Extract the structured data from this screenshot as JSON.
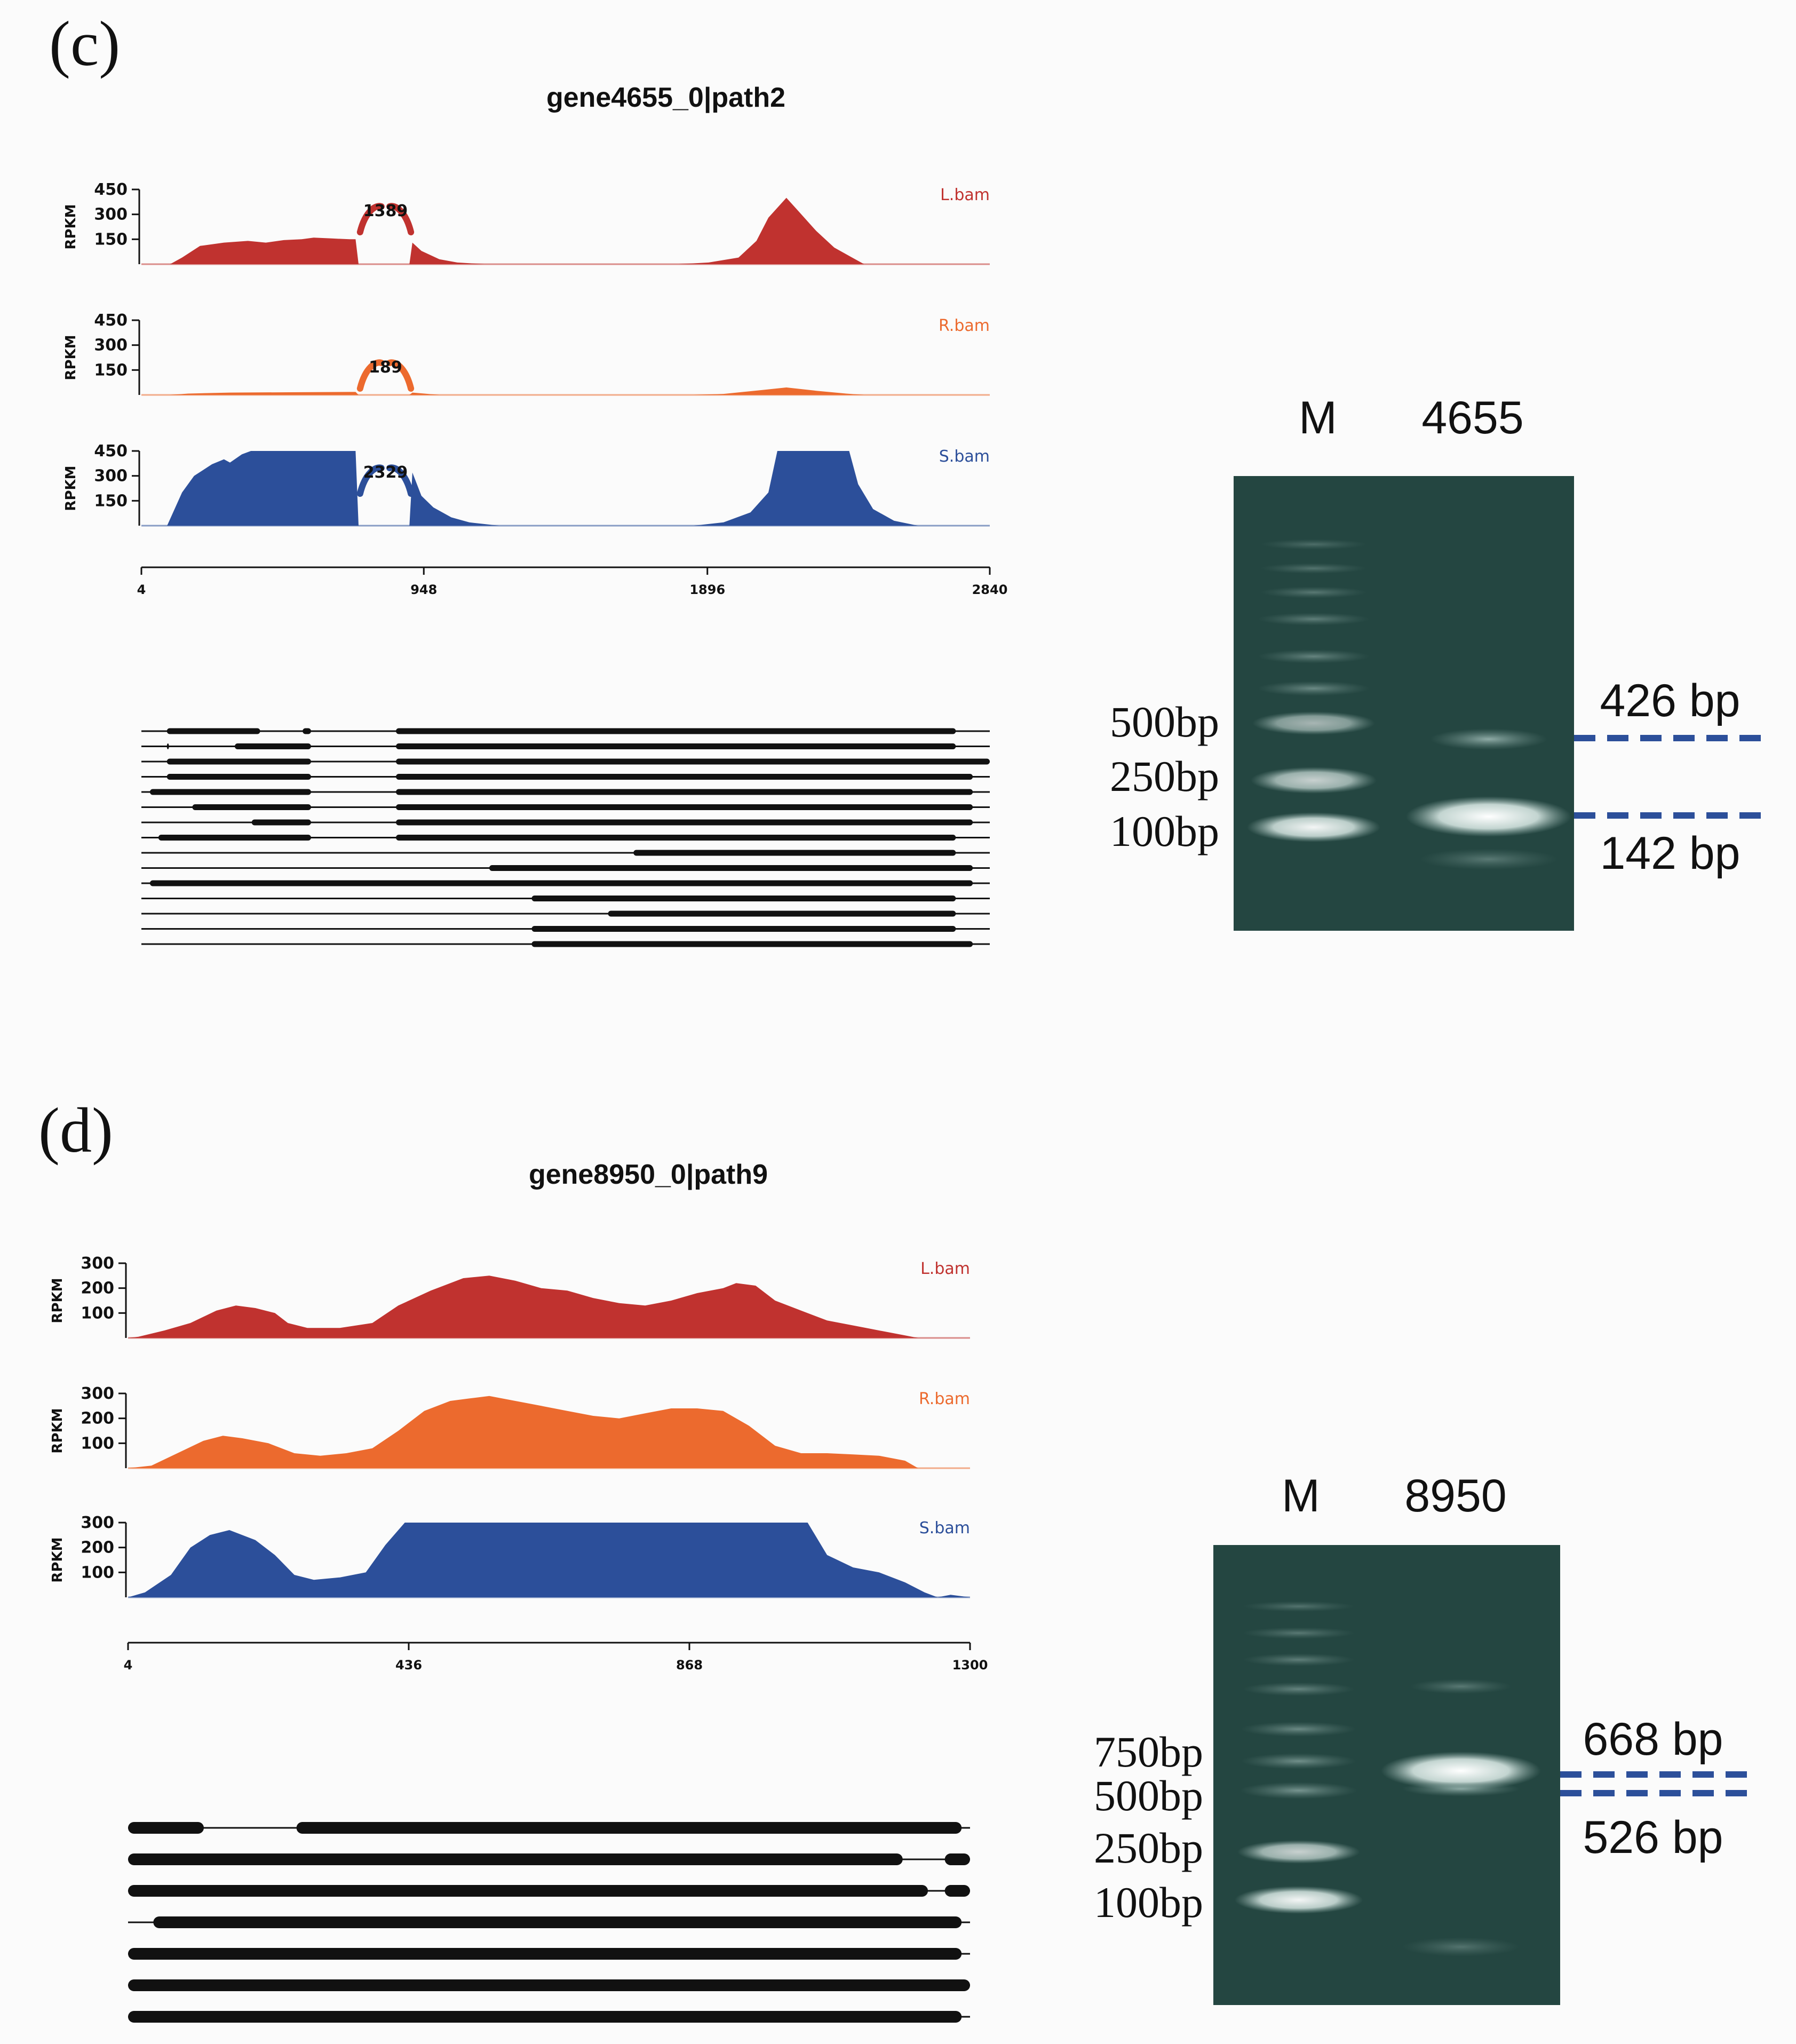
{
  "panels": [
    {
      "label": "(c)",
      "title": "gene4655_0|path2",
      "ylabel": "RPKM",
      "y_ticks": [
        "450",
        "300",
        "150"
      ],
      "y_max": 450,
      "x_ticks": [
        "4",
        "948",
        "1896",
        "2840"
      ],
      "x_range": [
        4,
        2840
      ],
      "tracks": [
        {
          "name": "L.bam",
          "color": "#c0322f",
          "junction": "1389",
          "profile": [
            [
              4,
              0
            ],
            [
              100,
              0
            ],
            [
              140,
              40
            ],
            [
              200,
              110
            ],
            [
              280,
              130
            ],
            [
              360,
              140
            ],
            [
              420,
              130
            ],
            [
              480,
              145
            ],
            [
              540,
              150
            ],
            [
              580,
              160
            ],
            [
              640,
              155
            ],
            [
              700,
              150
            ],
            [
              720,
              150
            ],
            [
              730,
              0
            ],
            [
              900,
              0
            ],
            [
              910,
              130
            ],
            [
              940,
              80
            ],
            [
              1000,
              30
            ],
            [
              1060,
              10
            ],
            [
              1150,
              0
            ],
            [
              1800,
              0
            ],
            [
              1900,
              10
            ],
            [
              2000,
              40
            ],
            [
              2060,
              140
            ],
            [
              2100,
              280
            ],
            [
              2160,
              400
            ],
            [
              2200,
              320
            ],
            [
              2260,
              200
            ],
            [
              2320,
              100
            ],
            [
              2380,
              40
            ],
            [
              2420,
              0
            ],
            [
              2840,
              0
            ]
          ]
        },
        {
          "name": "R.bam",
          "color": "#ec6a2e",
          "junction": "189",
          "profile": [
            [
              4,
              0
            ],
            [
              100,
              0
            ],
            [
              160,
              8
            ],
            [
              300,
              14
            ],
            [
              500,
              16
            ],
            [
              700,
              18
            ],
            [
              720,
              18
            ],
            [
              730,
              0
            ],
            [
              900,
              0
            ],
            [
              910,
              14
            ],
            [
              950,
              8
            ],
            [
              1000,
              0
            ],
            [
              1850,
              0
            ],
            [
              1950,
              6
            ],
            [
              2080,
              30
            ],
            [
              2160,
              45
            ],
            [
              2260,
              25
            ],
            [
              2360,
              8
            ],
            [
              2420,
              0
            ],
            [
              2840,
              0
            ]
          ]
        },
        {
          "name": "S.bam",
          "color": "#2c4f9a",
          "junction": "2329",
          "profile": [
            [
              4,
              0
            ],
            [
              90,
              0
            ],
            [
              110,
              80
            ],
            [
              140,
              200
            ],
            [
              180,
              300
            ],
            [
              240,
              370
            ],
            [
              280,
              400
            ],
            [
              300,
              380
            ],
            [
              340,
              430
            ],
            [
              370,
              450
            ],
            [
              720,
              450
            ],
            [
              730,
              0
            ],
            [
              900,
              0
            ],
            [
              910,
              320
            ],
            [
              940,
              180
            ],
            [
              980,
              110
            ],
            [
              1040,
              50
            ],
            [
              1100,
              20
            ],
            [
              1200,
              0
            ],
            [
              1850,
              0
            ],
            [
              1950,
              20
            ],
            [
              2040,
              80
            ],
            [
              2100,
              200
            ],
            [
              2130,
              450
            ],
            [
              2370,
              450
            ],
            [
              2400,
              250
            ],
            [
              2450,
              100
            ],
            [
              2520,
              30
            ],
            [
              2600,
              0
            ],
            [
              2840,
              0
            ]
          ]
        }
      ],
      "isoform_count": 15,
      "gel": {
        "header_m": "M",
        "header_sample": "4655",
        "marker_labels": [
          "500bp",
          "250bp",
          "100bp"
        ],
        "band_labels": [
          "426 bp",
          "142 bp"
        ]
      }
    },
    {
      "label": "(d)",
      "title": "gene8950_0|path9",
      "ylabel": "RPKM",
      "y_ticks": [
        "300",
        "200",
        "100"
      ],
      "y_max": 300,
      "x_ticks": [
        "4",
        "436",
        "868",
        "1300"
      ],
      "x_range": [
        4,
        1300
      ],
      "tracks": [
        {
          "name": "L.bam",
          "color": "#c0322f",
          "junction": "",
          "profile": [
            [
              4,
              0
            ],
            [
              20,
              5
            ],
            [
              60,
              30
            ],
            [
              100,
              60
            ],
            [
              140,
              110
            ],
            [
              170,
              130
            ],
            [
              200,
              120
            ],
            [
              230,
              100
            ],
            [
              250,
              60
            ],
            [
              280,
              40
            ],
            [
              330,
              40
            ],
            [
              380,
              60
            ],
            [
              420,
              130
            ],
            [
              470,
              190
            ],
            [
              520,
              240
            ],
            [
              560,
              250
            ],
            [
              600,
              230
            ],
            [
              640,
              200
            ],
            [
              680,
              190
            ],
            [
              720,
              160
            ],
            [
              760,
              140
            ],
            [
              800,
              130
            ],
            [
              840,
              150
            ],
            [
              880,
              180
            ],
            [
              920,
              200
            ],
            [
              940,
              220
            ],
            [
              970,
              210
            ],
            [
              1000,
              150
            ],
            [
              1040,
              110
            ],
            [
              1080,
              70
            ],
            [
              1140,
              40
            ],
            [
              1200,
              10
            ],
            [
              1220,
              0
            ],
            [
              1300,
              0
            ]
          ]
        },
        {
          "name": "R.bam",
          "color": "#ec6a2e",
          "junction": "",
          "profile": [
            [
              4,
              0
            ],
            [
              40,
              10
            ],
            [
              80,
              60
            ],
            [
              120,
              110
            ],
            [
              150,
              130
            ],
            [
              180,
              120
            ],
            [
              220,
              100
            ],
            [
              260,
              60
            ],
            [
              300,
              50
            ],
            [
              340,
              60
            ],
            [
              380,
              80
            ],
            [
              420,
              150
            ],
            [
              460,
              230
            ],
            [
              500,
              270
            ],
            [
              530,
              280
            ],
            [
              560,
              290
            ],
            [
              600,
              270
            ],
            [
              640,
              250
            ],
            [
              680,
              230
            ],
            [
              720,
              210
            ],
            [
              760,
              200
            ],
            [
              800,
              220
            ],
            [
              840,
              240
            ],
            [
              880,
              240
            ],
            [
              920,
              230
            ],
            [
              960,
              170
            ],
            [
              1000,
              90
            ],
            [
              1040,
              60
            ],
            [
              1080,
              60
            ],
            [
              1120,
              55
            ],
            [
              1160,
              50
            ],
            [
              1200,
              30
            ],
            [
              1220,
              0
            ],
            [
              1300,
              0
            ]
          ]
        },
        {
          "name": "S.bam",
          "color": "#2c4f9a",
          "junction": "",
          "profile": [
            [
              4,
              0
            ],
            [
              30,
              20
            ],
            [
              70,
              90
            ],
            [
              100,
              200
            ],
            [
              130,
              250
            ],
            [
              160,
              270
            ],
            [
              200,
              230
            ],
            [
              230,
              170
            ],
            [
              260,
              90
            ],
            [
              290,
              70
            ],
            [
              330,
              80
            ],
            [
              370,
              100
            ],
            [
              400,
              210
            ],
            [
              430,
              300
            ],
            [
              1050,
              300
            ],
            [
              1080,
              170
            ],
            [
              1120,
              120
            ],
            [
              1160,
              100
            ],
            [
              1200,
              60
            ],
            [
              1230,
              20
            ],
            [
              1250,
              0
            ],
            [
              1270,
              10
            ],
            [
              1300,
              0
            ]
          ]
        }
      ],
      "isoform_count": 7,
      "gel": {
        "header_m": "M",
        "header_sample": "8950",
        "marker_labels": [
          "750bp",
          "500bp",
          "250bp",
          "100bp"
        ],
        "band_labels": [
          "668 bp",
          "526 bp"
        ]
      }
    }
  ]
}
